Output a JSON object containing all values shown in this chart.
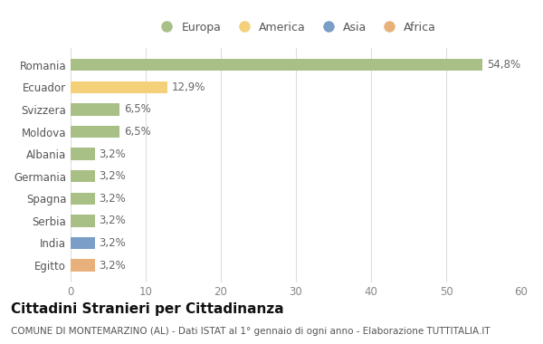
{
  "categories": [
    "Egitto",
    "India",
    "Serbia",
    "Spagna",
    "Germania",
    "Albania",
    "Moldova",
    "Svizzera",
    "Ecuador",
    "Romania"
  ],
  "values": [
    3.2,
    3.2,
    3.2,
    3.2,
    3.2,
    3.2,
    6.5,
    6.5,
    12.9,
    54.8
  ],
  "labels": [
    "3,2%",
    "3,2%",
    "3,2%",
    "3,2%",
    "3,2%",
    "3,2%",
    "6,5%",
    "6,5%",
    "12,9%",
    "54,8%"
  ],
  "colors": [
    "#e8b07a",
    "#7b9ec8",
    "#a8bf85",
    "#a8bf85",
    "#a8bf85",
    "#a8bf85",
    "#a8bf85",
    "#a8bf85",
    "#f5d07a",
    "#a8bf85"
  ],
  "legend_labels": [
    "Europa",
    "America",
    "Asia",
    "Africa"
  ],
  "legend_colors": [
    "#a8bf85",
    "#f5d07a",
    "#7b9ec8",
    "#e8b07a"
  ],
  "title": "Cittadini Stranieri per Cittadinanza",
  "subtitle": "COMUNE DI MONTEMARZINO (AL) - Dati ISTAT al 1° gennaio di ogni anno - Elaborazione TUTTITALIA.IT",
  "xlim": [
    0,
    60
  ],
  "xticks": [
    0,
    10,
    20,
    30,
    40,
    50,
    60
  ],
  "background_color": "#ffffff",
  "bar_height": 0.55,
  "title_fontsize": 11,
  "subtitle_fontsize": 7.5,
  "label_fontsize": 8.5,
  "tick_fontsize": 8.5,
  "legend_fontsize": 9
}
